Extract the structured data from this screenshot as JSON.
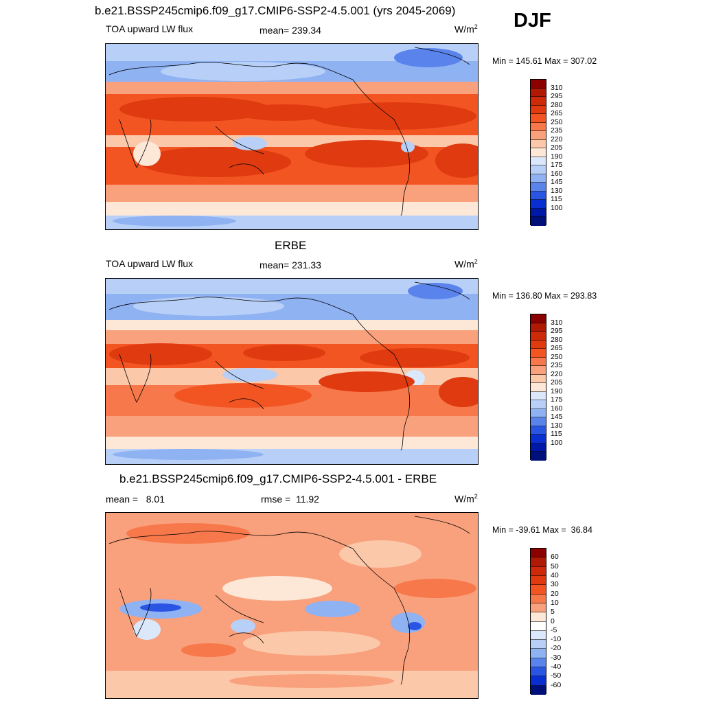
{
  "season": "DJF",
  "units_base": "W/m",
  "units_exp": "2",
  "panels": [
    {
      "title": "b.e21.BSSP245cmip6.f09_g17.CMIP6-SSP2-4.5.001 (yrs 2045-2069)",
      "variable": "TOA upward LW flux",
      "mean": "mean= 239.34",
      "minmax": "Min = 145.61 Max = 307.02"
    },
    {
      "title": "ERBE",
      "variable": "TOA upward LW flux",
      "mean": "mean= 231.33",
      "minmax": "Min = 136.80 Max = 293.83"
    },
    {
      "title": "b.e21.BSSP245cmip6.f09_g17.CMIP6-SSP2-4.5.001 - ERBE",
      "mean": "mean =   8.01",
      "rmse": "rmse =  11.92",
      "minmax": "Min = -39.61 Max =  36.84"
    }
  ],
  "colorbars": {
    "absolute": {
      "labels": [
        "310",
        "295",
        "280",
        "265",
        "250",
        "235",
        "220",
        "205",
        "190",
        "175",
        "160",
        "145",
        "130",
        "115",
        "100"
      ],
      "colors": [
        "#8b0000",
        "#b01a05",
        "#cc2a08",
        "#e03a10",
        "#f25522",
        "#f7784a",
        "#f9a07c",
        "#fbc8aa",
        "#fde8d8",
        "#dbe8fb",
        "#b8d0f8",
        "#8fb2f3",
        "#5a84ec",
        "#2a55e3",
        "#0a2fd0",
        "#0018a8",
        "#00107a"
      ]
    },
    "difference": {
      "labels": [
        "60",
        "50",
        "40",
        "30",
        "20",
        "10",
        "5",
        "0",
        "-5",
        "-10",
        "-20",
        "-30",
        "-40",
        "-50",
        "-60"
      ],
      "colors": [
        "#8b0000",
        "#b01a05",
        "#cc2a08",
        "#e03a10",
        "#f25522",
        "#f7784a",
        "#f9a07c",
        "#fde8d8",
        "#ffffff",
        "#dbe8fb",
        "#b8d0f8",
        "#8fb2f3",
        "#5a84ec",
        "#2a55e3",
        "#0a2fd0",
        "#00107a"
      ]
    }
  }
}
